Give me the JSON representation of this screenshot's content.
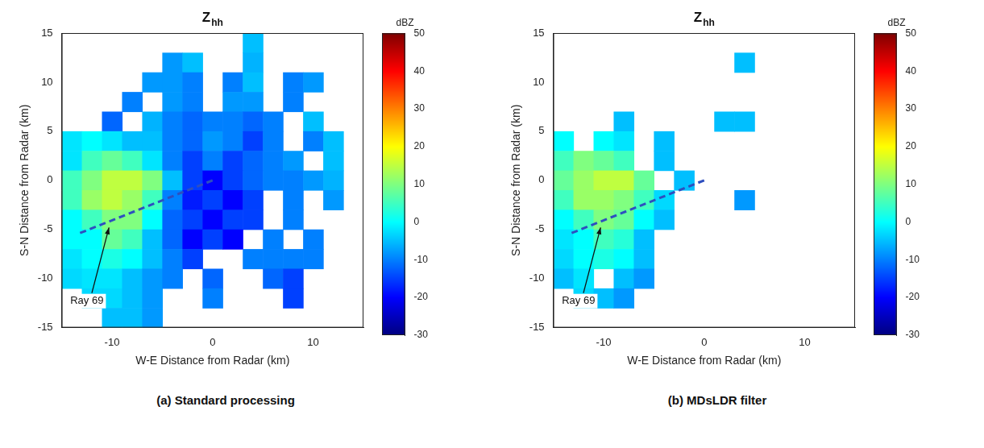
{
  "chart_data": [
    {
      "type": "heatmap",
      "title": "Z",
      "title_subscript": "hh",
      "caption": "(a) Standard processing",
      "x_label": "W-E Distance from Radar (km)",
      "y_label": "S-N Distance from Radar (km)",
      "xlim": [
        -15,
        15
      ],
      "xticks": [
        -10,
        0,
        10
      ],
      "ylim": [
        -15,
        15
      ],
      "yticks": [
        -15,
        -10,
        -5,
        0,
        5,
        10,
        15
      ],
      "grid": false,
      "cells": {
        "x": [
          -14,
          -12,
          -10,
          -8,
          -6,
          -4,
          -2,
          0,
          2,
          4,
          6,
          8,
          10,
          12,
          14
        ],
        "y": [
          14,
          12,
          10,
          8,
          6,
          4,
          2,
          0,
          -2,
          -4,
          -6,
          -8,
          -10,
          -12,
          -14
        ],
        "z": [
          [
            null,
            null,
            null,
            null,
            null,
            null,
            null,
            null,
            null,
            -5,
            null,
            null,
            null,
            null,
            null
          ],
          [
            null,
            null,
            null,
            null,
            null,
            -8,
            -5,
            null,
            null,
            -6,
            null,
            null,
            null,
            null,
            null
          ],
          [
            null,
            null,
            null,
            null,
            -8,
            -8,
            -10,
            null,
            -10,
            -5,
            null,
            -10,
            -8,
            null,
            null
          ],
          [
            null,
            null,
            null,
            -10,
            null,
            -8,
            -10,
            null,
            -8,
            -8,
            null,
            -10,
            null,
            null,
            null
          ],
          [
            null,
            null,
            -12,
            null,
            -6,
            -10,
            -12,
            -10,
            -10,
            -12,
            -10,
            null,
            -5,
            null,
            null
          ],
          [
            -2,
            0,
            -2,
            -5,
            -5,
            -10,
            -12,
            -8,
            -10,
            -15,
            -10,
            null,
            -10,
            -5,
            null
          ],
          [
            -2,
            5,
            8,
            5,
            -2,
            -10,
            -15,
            -10,
            -15,
            -12,
            -10,
            -8,
            null,
            -5,
            null
          ],
          [
            5,
            10,
            15,
            15,
            10,
            -5,
            -15,
            -20,
            -15,
            -12,
            -10,
            -10,
            -8,
            -6,
            null
          ],
          [
            5,
            12,
            15,
            12,
            5,
            -10,
            -18,
            -15,
            -20,
            -15,
            null,
            -10,
            null,
            -8,
            null
          ],
          [
            0,
            5,
            10,
            10,
            0,
            -12,
            -15,
            -20,
            -15,
            -15,
            null,
            -10,
            null,
            null,
            null
          ],
          [
            0,
            0,
            8,
            5,
            -5,
            -12,
            -20,
            -15,
            -20,
            null,
            -10,
            null,
            -10,
            null,
            null
          ],
          [
            -2,
            0,
            2,
            0,
            -5,
            -10,
            -15,
            null,
            null,
            -10,
            -10,
            -10,
            -10,
            null,
            null
          ],
          [
            -3,
            -2,
            -2,
            -5,
            -8,
            -10,
            null,
            -12,
            null,
            null,
            -12,
            -15,
            null,
            null,
            null
          ],
          [
            null,
            -3,
            -3,
            -5,
            -8,
            null,
            null,
            -10,
            null,
            null,
            null,
            -15,
            null,
            null,
            null
          ],
          [
            null,
            null,
            -5,
            -5,
            -8,
            null,
            null,
            null,
            null,
            null,
            null,
            null,
            null,
            null,
            null
          ]
        ]
      },
      "colorbar": {
        "label": "dBZ",
        "range": [
          -30,
          50
        ],
        "ticks": [
          -30,
          -20,
          -10,
          0,
          10,
          20,
          30,
          40,
          50
        ]
      },
      "ray": {
        "x": [
          0,
          -13.5
        ],
        "y": [
          0,
          -5.5
        ],
        "color": "#2e4fbf",
        "line_style": "dashed"
      },
      "annotations": [
        {
          "text": "Ray 69",
          "x": -12.5,
          "y": -12.3,
          "arrow_to": [
            -10.3,
            -4.8
          ]
        }
      ]
    },
    {
      "type": "heatmap",
      "title": "Z",
      "title_subscript": "hh",
      "caption": "(b) MDsLDR filter",
      "x_label": "W-E Distance from Radar (km)",
      "y_label": "S-N Distance from Radar (km)",
      "xlim": [
        -15,
        15
      ],
      "xticks": [
        -10,
        0,
        10
      ],
      "ylim": [
        -15,
        15
      ],
      "yticks": [
        -15,
        -10,
        -5,
        0,
        5,
        10,
        15
      ],
      "grid": false,
      "cells": {
        "x": [
          -14,
          -12,
          -10,
          -8,
          -6,
          -4,
          -2,
          0,
          2,
          4,
          6,
          8,
          10,
          12,
          14
        ],
        "y": [
          14,
          12,
          10,
          8,
          6,
          4,
          2,
          0,
          -2,
          -4,
          -6,
          -8,
          -10,
          -12,
          -14
        ],
        "z": [
          [
            null,
            null,
            null,
            null,
            null,
            null,
            null,
            null,
            null,
            null,
            null,
            null,
            null,
            null,
            null
          ],
          [
            null,
            null,
            null,
            null,
            null,
            null,
            null,
            null,
            null,
            -5,
            null,
            null,
            null,
            null,
            null
          ],
          [
            null,
            null,
            null,
            null,
            null,
            null,
            null,
            null,
            null,
            null,
            null,
            null,
            null,
            null,
            null
          ],
          [
            null,
            null,
            null,
            null,
            null,
            null,
            null,
            null,
            null,
            null,
            null,
            null,
            null,
            null,
            null
          ],
          [
            null,
            null,
            null,
            -5,
            null,
            null,
            null,
            null,
            -5,
            -5,
            null,
            null,
            null,
            null,
            null
          ],
          [
            0,
            null,
            0,
            -2,
            null,
            -5,
            null,
            null,
            null,
            null,
            null,
            null,
            null,
            null,
            null
          ],
          [
            5,
            10,
            8,
            5,
            null,
            -5,
            null,
            null,
            null,
            null,
            null,
            null,
            null,
            null,
            null
          ],
          [
            8,
            12,
            15,
            15,
            8,
            null,
            -5,
            null,
            null,
            null,
            null,
            null,
            null,
            null,
            null
          ],
          [
            5,
            12,
            12,
            10,
            5,
            -3,
            null,
            null,
            null,
            -8,
            null,
            null,
            null,
            null,
            null
          ],
          [
            0,
            5,
            10,
            8,
            0,
            -5,
            null,
            null,
            null,
            null,
            null,
            null,
            null,
            null,
            null
          ],
          [
            -2,
            0,
            5,
            3,
            -5,
            null,
            null,
            null,
            null,
            null,
            null,
            null,
            null,
            null,
            null
          ],
          [
            -3,
            0,
            2,
            0,
            -5,
            null,
            null,
            null,
            null,
            null,
            null,
            null,
            null,
            null,
            null
          ],
          [
            -5,
            -2,
            null,
            -5,
            -8,
            null,
            null,
            null,
            null,
            null,
            null,
            null,
            null,
            null,
            null
          ],
          [
            null,
            -3,
            -5,
            -8,
            null,
            null,
            null,
            null,
            null,
            null,
            null,
            null,
            null,
            null,
            null
          ],
          [
            null,
            null,
            null,
            null,
            null,
            null,
            null,
            null,
            null,
            null,
            null,
            null,
            null,
            null,
            null
          ]
        ]
      },
      "colorbar": {
        "label": "dBZ",
        "range": [
          -30,
          50
        ],
        "ticks": [
          -30,
          -20,
          -10,
          0,
          10,
          20,
          30,
          40,
          50
        ]
      },
      "ray": {
        "x": [
          0,
          -13.5
        ],
        "y": [
          0,
          -5.5
        ],
        "color": "#2e4fbf",
        "line_style": "dashed"
      },
      "annotations": [
        {
          "text": "Ray 69",
          "x": -12.5,
          "y": -12.3,
          "arrow_to": [
            -10.3,
            -4.8
          ]
        }
      ]
    }
  ]
}
